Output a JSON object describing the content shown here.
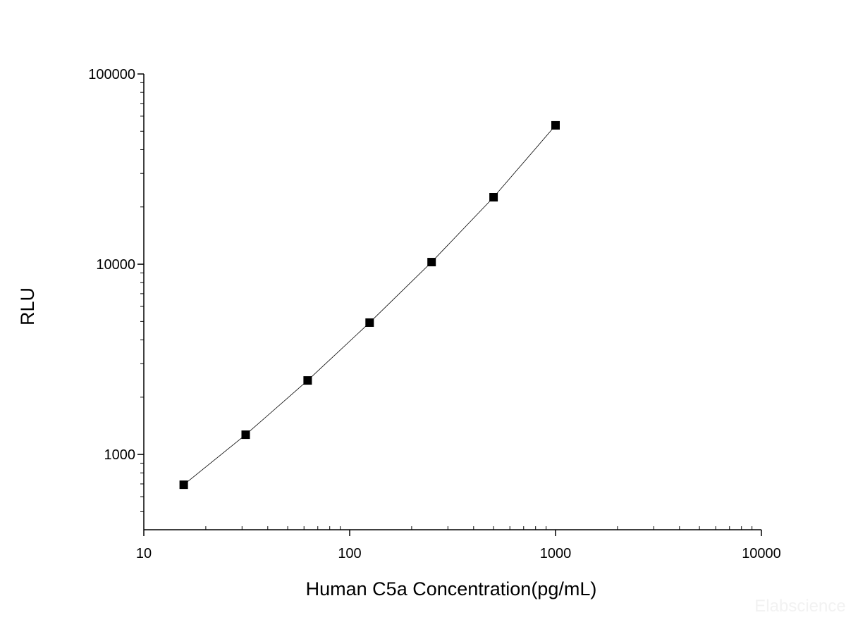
{
  "chart_data": {
    "type": "scatter",
    "x_label": "Human C5a Concentration(pg/mL)",
    "y_label": "RLU",
    "watermark": "Elabscience",
    "x": [
      15.625,
      31.25,
      62.5,
      125,
      250,
      500,
      1000
    ],
    "series": [
      {
        "color": "#000000",
        "values": [
          693,
          1270,
          2449,
          4932,
          10260,
          22490,
          53700
        ]
      }
    ],
    "xscale": "log",
    "yscale": "log",
    "xlim": [
      10,
      10000
    ],
    "ylim": [
      402,
      100000
    ],
    "xticks": [
      10,
      100,
      1000,
      10000
    ],
    "yticks": [
      1000,
      10000,
      100000
    ],
    "line": true
  }
}
